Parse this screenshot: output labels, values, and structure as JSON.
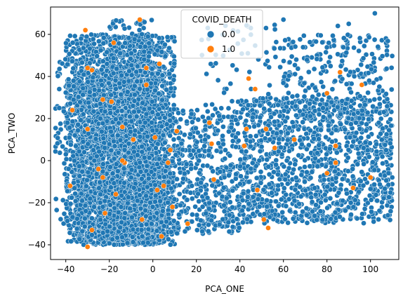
{
  "chart_data": {
    "type": "scatter",
    "xlabel": "PCA_ONE",
    "ylabel": "PCA_TWO",
    "xlim": [
      -47,
      113
    ],
    "ylim": [
      -47,
      73
    ],
    "x_ticks": [
      -40,
      -20,
      0,
      20,
      40,
      60,
      80,
      100
    ],
    "y_ticks": [
      -40,
      -20,
      0,
      20,
      40,
      60
    ],
    "x_tick_labels": [
      "−40",
      "−20",
      "0",
      "20",
      "40",
      "60",
      "80",
      "100"
    ],
    "y_tick_labels": [
      "−40",
      "−20",
      "0",
      "20",
      "40",
      "60"
    ],
    "grid": false,
    "legend": {
      "title": "COVID_DEATH",
      "placement": "top-center",
      "entries": [
        {
          "label": "0.0",
          "color": "#1f77b4"
        },
        {
          "label": "1.0",
          "color": "#ff7f0e"
        }
      ]
    },
    "series": [
      {
        "name": "0.0",
        "color": "#1f77b4",
        "clusters": [
          {
            "x": [
              -40,
              10
            ],
            "y": [
              -40,
              60
            ],
            "n": 1800
          },
          {
            "x": [
              -35,
              5
            ],
            "y": [
              -40,
              45
            ],
            "n": 1600
          },
          {
            "x": [
              -25,
              5
            ],
            "y": [
              -38,
              -10
            ],
            "n": 900
          },
          {
            "x": [
              -20,
              0
            ],
            "y": [
              -40,
              67
            ],
            "n": 500
          },
          {
            "x": [
              5,
              40
            ],
            "y": [
              -35,
              25
            ],
            "n": 500
          },
          {
            "x": [
              40,
              110
            ],
            "y": [
              -30,
              30
            ],
            "n": 1200
          },
          {
            "x": [
              60,
              110
            ],
            "y": [
              20,
              60
            ],
            "n": 250
          },
          {
            "x": [
              -45,
              -35
            ],
            "y": [
              -30,
              50
            ],
            "n": 80
          },
          {
            "x": [
              20,
              60
            ],
            "y": [
              25,
              65
            ],
            "n": 60
          }
        ],
        "extra_points": [
          {
            "x": 102,
            "y": 70
          },
          {
            "x": 60,
            "y": 67
          },
          {
            "x": 45,
            "y": 63
          },
          {
            "x": 52,
            "y": 63
          },
          {
            "x": 85,
            "y": 64
          },
          {
            "x": 90,
            "y": 65
          },
          {
            "x": 108,
            "y": -26
          },
          {
            "x": 110,
            "y": -8
          },
          {
            "x": -43,
            "y": 34
          },
          {
            "x": -43,
            "y": 25
          }
        ]
      },
      {
        "name": "1.0",
        "color": "#ff7f0e",
        "points": [
          {
            "x": -6,
            "y": 67
          },
          {
            "x": -31,
            "y": 62
          },
          {
            "x": -18,
            "y": 56
          },
          {
            "x": 44,
            "y": 39
          },
          {
            "x": 47,
            "y": 34
          },
          {
            "x": 26,
            "y": 18
          },
          {
            "x": 11,
            "y": 14
          },
          {
            "x": 52,
            "y": 15
          },
          {
            "x": 43,
            "y": 15
          },
          {
            "x": 56,
            "y": 6
          },
          {
            "x": 42,
            "y": 7
          },
          {
            "x": 27,
            "y": 8
          },
          {
            "x": 48,
            "y": -14
          },
          {
            "x": 28,
            "y": -9
          },
          {
            "x": 7,
            "y": -1
          },
          {
            "x": 2,
            "y": -14
          },
          {
            "x": 5,
            "y": -12
          },
          {
            "x": 9,
            "y": -22
          },
          {
            "x": -5,
            "y": -28
          },
          {
            "x": -28,
            "y": -33
          },
          {
            "x": -30,
            "y": -41
          },
          {
            "x": -22,
            "y": -25
          },
          {
            "x": -17,
            "y": -16
          },
          {
            "x": -38,
            "y": -12
          },
          {
            "x": -23,
            "y": -8
          },
          {
            "x": -13,
            "y": -1
          },
          {
            "x": -14,
            "y": 16
          },
          {
            "x": -30,
            "y": 15
          },
          {
            "x": -23,
            "y": 29
          },
          {
            "x": -19,
            "y": 28
          },
          {
            "x": -37,
            "y": 24
          },
          {
            "x": -30,
            "y": 44
          },
          {
            "x": -28,
            "y": 43
          },
          {
            "x": -3,
            "y": 44
          },
          {
            "x": 3,
            "y": 46
          },
          {
            "x": 80,
            "y": 32
          },
          {
            "x": 96,
            "y": 36
          },
          {
            "x": 86,
            "y": 42
          },
          {
            "x": 84,
            "y": 7
          },
          {
            "x": 84,
            "y": -1
          },
          {
            "x": 80,
            "y": -6
          },
          {
            "x": 92,
            "y": -13
          },
          {
            "x": 100,
            "y": -8
          },
          {
            "x": 65,
            "y": 10
          },
          {
            "x": 53,
            "y": -32
          },
          {
            "x": 51,
            "y": -28
          },
          {
            "x": 16,
            "y": -30
          },
          {
            "x": 4,
            "y": -36
          },
          {
            "x": -9,
            "y": 10
          },
          {
            "x": 1,
            "y": 11
          },
          {
            "x": 8,
            "y": 5
          },
          {
            "x": -25,
            "y": -4
          },
          {
            "x": -3,
            "y": 36
          },
          {
            "x": -14,
            "y": 0
          }
        ]
      }
    ]
  }
}
